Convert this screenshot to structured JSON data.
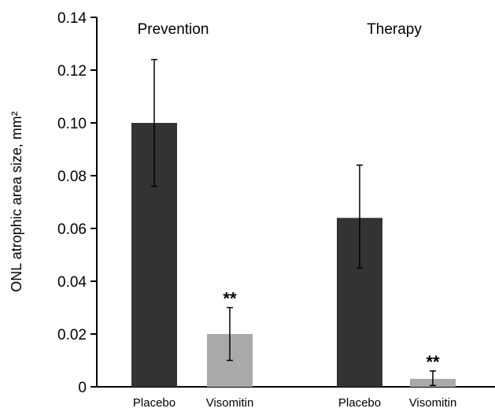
{
  "chart_data": {
    "type": "bar",
    "title": "",
    "ylabel": "ONL atrophic area size, mm²",
    "xlabel": "",
    "ylim": [
      0,
      0.14
    ],
    "yticks": [
      "0",
      "0.02",
      "0.04",
      "0.06",
      "0.08",
      "0.10",
      "0.12",
      "0.14"
    ],
    "grid": false,
    "groups": [
      {
        "name": "Prevention",
        "bars": [
          {
            "category": "Placebo",
            "value": 0.1,
            "error_low": 0.076,
            "error_high": 0.124,
            "color": "#333333",
            "annotation": ""
          },
          {
            "category": "Visomitin",
            "value": 0.02,
            "error_low": 0.01,
            "error_high": 0.03,
            "color": "#a9a9a9",
            "annotation": "**"
          }
        ]
      },
      {
        "name": "Therapy",
        "bars": [
          {
            "category": "Placebo",
            "value": 0.064,
            "error_low": 0.045,
            "error_high": 0.084,
            "color": "#333333",
            "annotation": ""
          },
          {
            "category": "Visomitin",
            "value": 0.003,
            "error_low": 0.0005,
            "error_high": 0.006,
            "color": "#a9a9a9",
            "annotation": "**"
          }
        ]
      }
    ]
  }
}
